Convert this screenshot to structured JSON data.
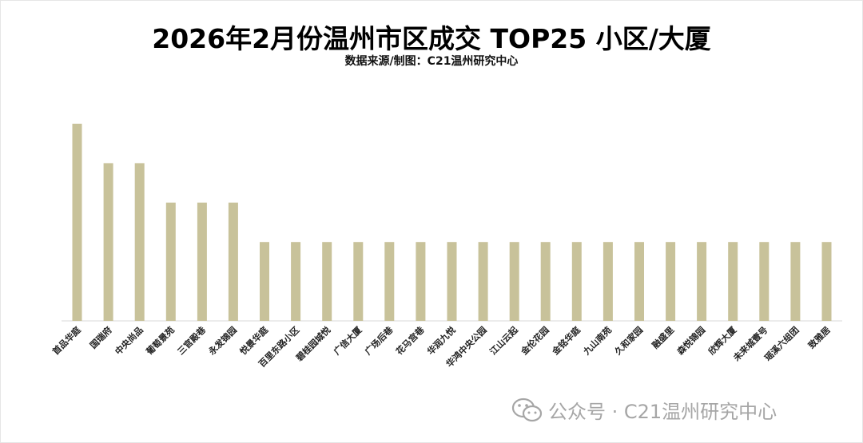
{
  "title": "2026年2月份温州市区成交 TOP25 小区/大厦",
  "subtitle": "数据来源/制图：C21温州研究中心",
  "watermark": {
    "text": "公众号 · C21温州研究中心",
    "icon": "wechat-icon"
  },
  "colors": {
    "bar": "#c8c29a",
    "axis": "#d9d9d9",
    "label": "#222222"
  },
  "chart_data": {
    "type": "bar",
    "title": "2026年2月份温州市区成交 TOP25 小区/大厦",
    "subtitle": "数据来源/制图：C21温州研究中心",
    "xlabel": "",
    "ylabel": "",
    "grid": false,
    "ylim": [
      0,
      5
    ],
    "categories": [
      "首品华庭",
      "国瑞府",
      "中央尚品",
      "葡萄景苑",
      "三官殿巷",
      "永发锦园",
      "悦景华庭",
      "百里东路小区",
      "碧桂园城悦",
      "广信大厦",
      "广场后巷",
      "花马宫巷",
      "华润九悦",
      "华鸿中央公园",
      "江山云起",
      "金伦花园",
      "金铭华庭",
      "九山南苑",
      "久和家园",
      "融盛里",
      "森悦锦园",
      "欣辉大厦",
      "未来城壹号",
      "瑶溪六组团",
      "致雅居"
    ],
    "values": [
      5,
      4,
      4,
      3,
      3,
      3,
      2,
      2,
      2,
      2,
      2,
      2,
      2,
      2,
      2,
      2,
      2,
      2,
      2,
      2,
      2,
      2,
      2,
      2,
      2
    ]
  }
}
